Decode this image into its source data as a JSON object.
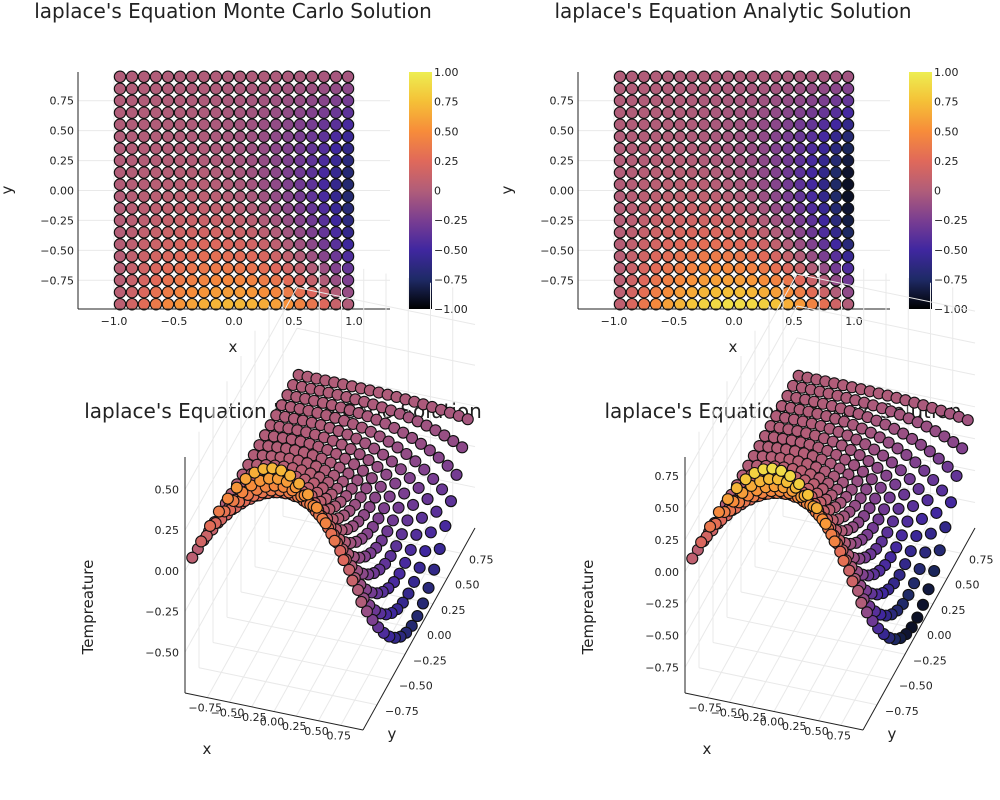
{
  "colorscale": [
    "#000000",
    "#1e2a66",
    "#4027a0",
    "#7a3e91",
    "#b15d79",
    "#e0695a",
    "#f78c3a",
    "#f5c037",
    "#edee51"
  ],
  "chart_data": [
    {
      "type": "scatter",
      "panel": "top-left",
      "title": "laplace's Equation Monte Carlo Solution",
      "xlabel": "x",
      "ylabel": "y",
      "xlim": [
        -1.3,
        1.3
      ],
      "ylim": [
        -0.99,
        0.99
      ],
      "xticks": [
        -1.0,
        -0.5,
        0.0,
        0.5,
        1.0
      ],
      "yticks": [
        -0.75,
        -0.5,
        -0.25,
        0.0,
        0.25,
        0.5,
        0.75
      ],
      "grid_n": 20,
      "grid_range": [
        -0.95,
        0.95
      ],
      "value_model": "monte_carlo",
      "colorbar": {
        "clim": [
          -1,
          1
        ],
        "ticks": [
          -1.0,
          -0.75,
          -0.5,
          -0.25,
          0,
          0.25,
          0.5,
          0.75,
          1.0
        ]
      }
    },
    {
      "type": "scatter",
      "panel": "top-right",
      "title": "laplace's Equation Analytic Solution",
      "xlabel": "x",
      "ylabel": "y",
      "xlim": [
        -1.3,
        1.3
      ],
      "ylim": [
        -0.99,
        0.99
      ],
      "xticks": [
        -1.0,
        -0.5,
        0.0,
        0.5,
        1.0
      ],
      "yticks": [
        -0.75,
        -0.5,
        -0.25,
        0.0,
        0.25,
        0.5,
        0.75
      ],
      "grid_n": 20,
      "grid_range": [
        -0.95,
        0.95
      ],
      "value_model": "analytic",
      "colorbar": {
        "clim": [
          -1,
          1
        ],
        "ticks": [
          -1.0,
          -0.75,
          -0.5,
          -0.25,
          0,
          0.25,
          0.5,
          0.75,
          1.0
        ]
      }
    },
    {
      "type": "scatter3d",
      "panel": "bottom-left",
      "title": "laplace's Equation Monte Carlo Solution",
      "xlabel": "x",
      "ylabel": "y",
      "zlabel": "Tempreature",
      "xticks": [
        -0.75,
        -0.5,
        -0.25,
        0.0,
        0.25,
        0.5,
        0.75
      ],
      "yticks": [
        -0.75,
        -0.5,
        -0.25,
        0.0,
        0.25,
        0.5,
        0.75
      ],
      "zticks": [
        -0.5,
        -0.25,
        0.0,
        0.25,
        0.5
      ],
      "zlim": [
        -0.75,
        0.7
      ],
      "grid_n": 20,
      "grid_range": [
        -0.95,
        0.95
      ],
      "value_model": "monte_carlo"
    },
    {
      "type": "scatter3d",
      "panel": "bottom-right",
      "title": "laplace's Equation Analytic Solution",
      "xlabel": "x",
      "ylabel": "y",
      "zlabel": "Tempreature",
      "xticks": [
        -0.75,
        -0.5,
        -0.25,
        0.0,
        0.25,
        0.5,
        0.75
      ],
      "yticks": [
        -0.75,
        -0.5,
        -0.25,
        0.0,
        0.25,
        0.5,
        0.75
      ],
      "zticks": [
        -0.75,
        -0.5,
        -0.25,
        0.0,
        0.25,
        0.5,
        0.75
      ],
      "zlim": [
        -0.95,
        0.9
      ],
      "grid_n": 20,
      "grid_range": [
        -0.95,
        0.95
      ],
      "value_model": "analytic"
    }
  ]
}
